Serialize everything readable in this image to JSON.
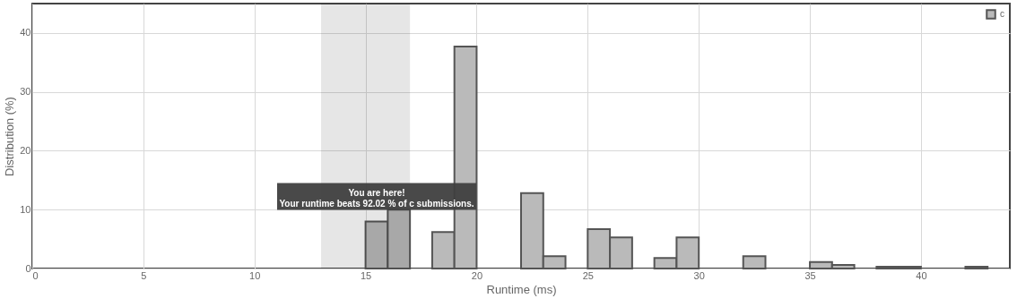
{
  "chart_data": {
    "type": "histogram",
    "xlabel": "Runtime (ms)",
    "ylabel": "Distribution (%)",
    "bins": [
      15,
      16,
      17,
      18,
      19,
      20,
      21,
      22,
      23,
      24,
      25,
      26,
      27,
      28,
      29,
      30,
      31,
      32,
      33,
      34,
      35,
      36,
      37,
      38,
      39,
      40,
      41,
      42,
      43
    ],
    "series": [
      {
        "name": "c",
        "color": "#bababa",
        "values": [
          8,
          10,
          0,
          6.2,
          37.7,
          0,
          0,
          12.8,
          2.1,
          0,
          6.7,
          5.3,
          0,
          1.8,
          5.3,
          0,
          0,
          2.1,
          0,
          0,
          1.1,
          0.6,
          0,
          0.3,
          0.3,
          0,
          0,
          0.3
        ]
      }
    ],
    "xlim": [
      0,
      44
    ],
    "xticks": [
      0,
      5,
      10,
      15,
      20,
      25,
      30,
      35,
      40
    ],
    "ylim": [
      0,
      45
    ],
    "yticks": [
      0,
      10,
      20,
      30,
      40
    ],
    "bands": [
      {
        "axis": "x",
        "from": 13,
        "to": 17,
        "color": "#e6e6e6"
      }
    ],
    "annotations": [
      {
        "text": "You are here!",
        "x": 15.5,
        "y": 8
      },
      {
        "text": "Your runtime beats 92.02 % of c submissions.",
        "x": 15.5,
        "y": 8
      }
    ],
    "grid": true,
    "legend": "top right"
  }
}
